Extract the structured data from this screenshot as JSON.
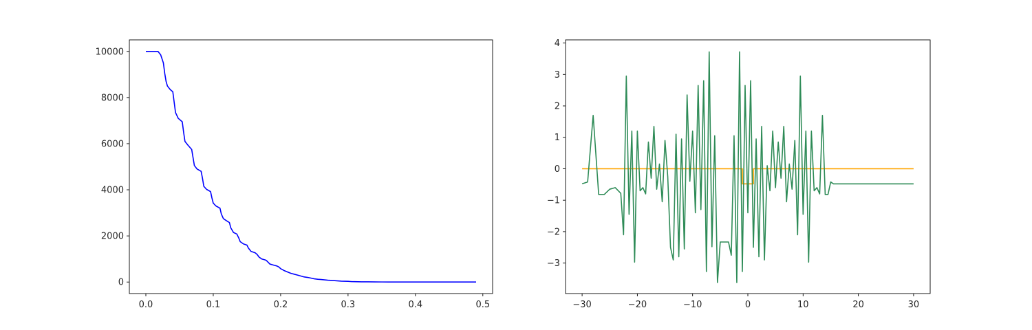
{
  "chart_data": [
    {
      "type": "line",
      "title": "",
      "xlabel": "",
      "ylabel": "",
      "xlim": [
        -0.0245,
        0.5145
      ],
      "ylim": [
        -500,
        10500
      ],
      "grid": false,
      "xticks": [
        0.0,
        0.1,
        0.2,
        0.3,
        0.4,
        0.5
      ],
      "xtick_labels": [
        "0.0",
        "0.1",
        "0.2",
        "0.3",
        "0.4",
        "0.5"
      ],
      "yticks": [
        0,
        2000,
        4000,
        6000,
        8000,
        10000
      ],
      "ytick_labels": [
        "0",
        "2000",
        "4000",
        "6000",
        "8000",
        "10000"
      ],
      "series": [
        {
          "color": "#0000ff",
          "x": [
            0.0,
            0.01,
            0.018,
            0.022,
            0.026,
            0.028,
            0.03,
            0.032,
            0.036,
            0.04,
            0.042,
            0.044,
            0.048,
            0.054,
            0.056,
            0.058,
            0.062,
            0.068,
            0.07,
            0.072,
            0.076,
            0.082,
            0.084,
            0.086,
            0.09,
            0.096,
            0.098,
            0.1,
            0.104,
            0.11,
            0.112,
            0.115,
            0.12,
            0.124,
            0.126,
            0.13,
            0.135,
            0.138,
            0.14,
            0.145,
            0.15,
            0.152,
            0.156,
            0.162,
            0.165,
            0.168,
            0.172,
            0.178,
            0.18,
            0.184,
            0.19,
            0.194,
            0.197,
            0.2,
            0.205,
            0.21,
            0.215,
            0.22,
            0.225,
            0.23,
            0.235,
            0.24,
            0.245,
            0.25,
            0.255,
            0.26,
            0.265,
            0.27,
            0.28,
            0.285,
            0.29,
            0.3,
            0.305,
            0.31,
            0.32,
            0.33,
            0.34,
            0.35,
            0.36,
            0.37,
            0.38,
            0.4,
            0.42,
            0.44,
            0.46,
            0.49
          ],
          "y": [
            10000,
            10000,
            10000,
            9850,
            9500,
            9050,
            8700,
            8500,
            8350,
            8250,
            7800,
            7350,
            7100,
            6950,
            6500,
            6100,
            5950,
            5750,
            5400,
            5050,
            4900,
            4800,
            4500,
            4150,
            4020,
            3920,
            3650,
            3420,
            3300,
            3200,
            2950,
            2750,
            2650,
            2580,
            2350,
            2150,
            2080,
            1900,
            1750,
            1650,
            1600,
            1480,
            1330,
            1270,
            1200,
            1080,
            1000,
            950,
            900,
            780,
            730,
            700,
            660,
            580,
            500,
            440,
            380,
            340,
            300,
            260,
            220,
            200,
            170,
            140,
            120,
            110,
            95,
            80,
            60,
            50,
            40,
            30,
            20,
            15,
            10,
            8,
            5,
            3,
            2,
            1,
            0,
            0,
            0,
            0,
            0,
            0
          ]
        }
      ]
    },
    {
      "type": "line",
      "title": "",
      "xlabel": "",
      "ylabel": "",
      "xlim": [
        -33,
        33
      ],
      "ylim": [
        -3.97,
        4.1
      ],
      "grid": false,
      "xticks": [
        -30,
        -20,
        -10,
        0,
        10,
        20,
        30
      ],
      "xtick_labels": [
        "−30",
        "−20",
        "−10",
        "0",
        "10",
        "20",
        "30"
      ],
      "yticks": [
        -3,
        -2,
        -1,
        0,
        1,
        2,
        3,
        4
      ],
      "ytick_labels": [
        "−3",
        "−2",
        "−1",
        "0",
        "1",
        "2",
        "3",
        "4"
      ],
      "series": [
        {
          "color": "#ffa500",
          "x": [
            -30,
            -1.0,
            -1.0,
            1.0,
            1.0,
            30
          ],
          "y": [
            0,
            0,
            -0.48,
            -0.48,
            0,
            0
          ]
        },
        {
          "color": "#2e8b57",
          "x": [
            -30,
            -29,
            -28,
            -27,
            -26,
            -25,
            -24,
            -23,
            -22.5,
            -22,
            -21.5,
            -21,
            -20.5,
            -20,
            -19.5,
            -19,
            -18.5,
            -18,
            -17.5,
            -17,
            -16.5,
            -16,
            -15.5,
            -15,
            -14.5,
            -14,
            -13.5,
            -13,
            -12.5,
            -12,
            -11.5,
            -11,
            -10.5,
            -10,
            -9.5,
            -9,
            -8.5,
            -8,
            -7.5,
            -7,
            -6.5,
            -6,
            -5.5,
            -5,
            -4.5,
            -4,
            -3.5,
            -3,
            -2.5,
            -2,
            -1.5,
            -1,
            -0.5,
            0,
            0.5,
            1,
            1.5,
            2,
            2.5,
            3,
            3.5,
            4,
            4.5,
            5,
            5.5,
            6,
            6.5,
            7,
            7.5,
            8,
            8.5,
            9,
            9.5,
            10,
            10.5,
            11,
            11.5,
            12,
            12.5,
            13,
            13.5,
            14,
            14.5,
            15,
            15.5,
            16,
            16.5,
            17,
            17.5,
            18,
            18.5,
            19,
            19.5,
            20,
            20.5,
            21,
            21.5,
            22,
            22.5,
            23,
            24,
            25,
            26,
            27,
            28,
            29,
            30
          ],
          "y": [
            -0.48,
            -0.42,
            1.7,
            -0.82,
            -0.82,
            -0.65,
            -0.6,
            -0.78,
            -2.1,
            2.95,
            -1.45,
            1.2,
            -2.97,
            1.2,
            -0.7,
            -0.6,
            -0.8,
            0.85,
            -0.3,
            1.35,
            -0.65,
            0.15,
            -1.05,
            0.9,
            -0.25,
            -2.5,
            -2.9,
            1.1,
            -2.8,
            0.95,
            -2.55,
            2.35,
            -0.4,
            1.2,
            -1.4,
            2.65,
            -1.3,
            2.8,
            -3.27,
            3.72,
            -2.48,
            1.05,
            -3.62,
            -2.33,
            -2.33,
            -2.33,
            -2.33,
            -2.75,
            1.05,
            -3.62,
            3.72,
            -3.27,
            2.65,
            -1.4,
            2.8,
            -2.5,
            0.95,
            -2.8,
            1.35,
            -2.9,
            0.1,
            -0.7,
            1.2,
            -0.6,
            0.85,
            -0.3,
            1.35,
            -1.05,
            0.15,
            -0.65,
            0.9,
            -2.1,
            2.95,
            -1.45,
            1.2,
            -2.97,
            1.2,
            -0.7,
            -0.6,
            -0.8,
            1.7,
            -0.82,
            -0.82,
            -0.42,
            -0.48,
            -0.48,
            -0.48,
            -0.48,
            -0.48,
            -0.48,
            -0.48,
            -0.48,
            -0.48,
            -0.48,
            -0.48,
            -0.48,
            -0.48,
            -0.48,
            -0.48,
            -0.48,
            -0.48,
            -0.48,
            -0.48,
            -0.48,
            -0.48,
            -0.48,
            -0.48
          ]
        }
      ]
    }
  ]
}
